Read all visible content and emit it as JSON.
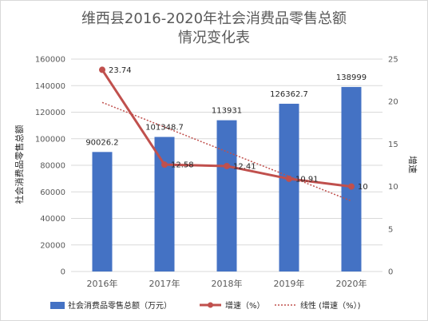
{
  "chart_data": {
    "type": "bar",
    "title_lines": [
      "维西县2016-2020年社会消费品零售总额",
      "情况变化表"
    ],
    "categories": [
      "2016年",
      "2017年",
      "2018年",
      "2019年",
      "2020年"
    ],
    "y_left": {
      "label": "社会消费品零售总额",
      "ylim": [
        0,
        160000
      ],
      "ticks": [
        "0",
        "20000",
        "40000",
        "60000",
        "80000",
        "100000",
        "120000",
        "140000",
        "160000"
      ]
    },
    "y_right": {
      "label": "增速",
      "ylim": [
        0,
        25
      ],
      "ticks": [
        "0",
        "5",
        "10",
        "15",
        "20",
        "25"
      ]
    },
    "series": [
      {
        "name": "社会消费品零售总额（万元）",
        "type": "bar",
        "axis": "left",
        "color": "#4472c4",
        "values": [
          90026.2,
          101348.7,
          113931,
          126362.7,
          138999
        ],
        "labels": [
          "90026.2",
          "101348.7",
          "113931",
          "126362.7",
          "138999"
        ]
      },
      {
        "name": "增速（%）",
        "type": "line",
        "axis": "right",
        "color": "#c0504d",
        "values": [
          23.74,
          12.58,
          12.41,
          10.91,
          10
        ],
        "labels": [
          "23.74",
          "12.58",
          "12.41",
          "10.91",
          "10"
        ]
      },
      {
        "name": "线性 (增速（%）)",
        "type": "trendline",
        "axis": "right",
        "color": "#c0504d",
        "values": [
          19.9,
          17.0,
          14.1,
          11.2,
          8.3
        ]
      }
    ],
    "grid": true,
    "legend_position": "bottom"
  }
}
